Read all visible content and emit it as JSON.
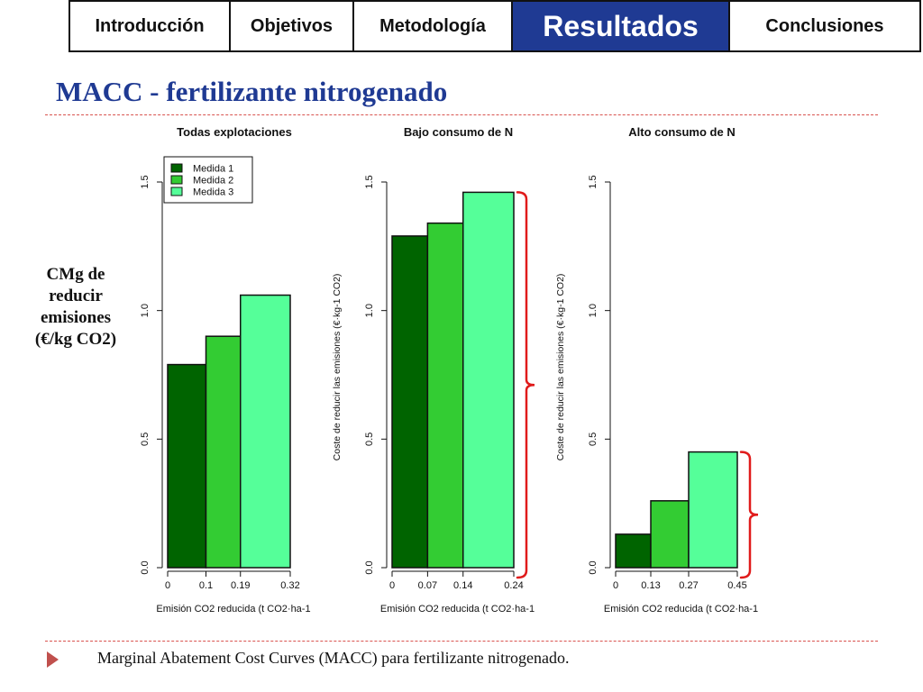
{
  "nav": {
    "tabs": [
      {
        "label": "Introducción",
        "active": false
      },
      {
        "label": "Objetivos",
        "active": false
      },
      {
        "label": "Metodología",
        "active": false
      },
      {
        "label": "Resultados",
        "active": true
      },
      {
        "label": "Conclusiones",
        "active": false
      }
    ]
  },
  "slide": {
    "title": "MACC - fertilizante nitrogenado",
    "side_label": [
      "CMg de",
      "reducir",
      "emisiones",
      "(€/kg CO2)"
    ],
    "caption": "Marginal Abatement Cost Curves (MACC) para fertilizante nitrogenado."
  },
  "colors": {
    "accent": "#1f3a93",
    "rule": "#d9534f",
    "bracket": "#e01b1b",
    "series": [
      "#006400",
      "#33cc33",
      "#55ff99"
    ]
  },
  "chart_data": [
    {
      "type": "bar",
      "title": "Todas explotaciones",
      "xlabel": "Emisión CO2 reducida (t CO2·ha-1",
      "ylabel": "",
      "ylim": [
        0,
        1.5
      ],
      "yticks": [
        "0.0",
        "0.5",
        "1.0",
        "1.5"
      ],
      "xticks": [
        "0",
        "0.1",
        "0.19",
        "0.32"
      ],
      "legend": {
        "placement": "top-left",
        "entries": [
          "Medida 1",
          "Medida 2",
          "Medida 3"
        ]
      },
      "bars": [
        {
          "name": "Medida 1",
          "x0": 0,
          "x1": 0.1,
          "value": 0.79
        },
        {
          "name": "Medida 2",
          "x0": 0.1,
          "x1": 0.19,
          "value": 0.9
        },
        {
          "name": "Medida 3",
          "x0": 0.19,
          "x1": 0.32,
          "value": 1.06
        }
      ],
      "bracket": false
    },
    {
      "type": "bar",
      "title": "Bajo consumo de N",
      "xlabel": "Emisión CO2 reducida (t CO2·ha-1",
      "ylabel": "Coste de reducir las emisiones (€·kg-1 CO2)",
      "ylim": [
        0,
        1.5
      ],
      "yticks": [
        "0.0",
        "0.5",
        "1.0",
        "1.5"
      ],
      "xticks": [
        "0",
        "0.07",
        "0.14",
        "0.24"
      ],
      "bars": [
        {
          "name": "Medida 1",
          "x0": 0,
          "x1": 0.07,
          "value": 1.29
        },
        {
          "name": "Medida 2",
          "x0": 0.07,
          "x1": 0.14,
          "value": 1.34
        },
        {
          "name": "Medida 3",
          "x0": 0.14,
          "x1": 0.24,
          "value": 1.46
        }
      ],
      "bracket": true
    },
    {
      "type": "bar",
      "title": "Alto consumo de N",
      "xlabel": "Emisión CO2 reducida (t CO2·ha-1",
      "ylabel": "Coste de reducir las emisiones (€·kg-1 CO2)",
      "ylim": [
        0,
        1.5
      ],
      "yticks": [
        "0.0",
        "0.5",
        "1.0",
        "1.5"
      ],
      "xticks": [
        "0",
        "0.13",
        "0.27",
        "0.45"
      ],
      "bars": [
        {
          "name": "Medida 1",
          "x0": 0,
          "x1": 0.13,
          "value": 0.13
        },
        {
          "name": "Medida 2",
          "x0": 0.13,
          "x1": 0.27,
          "value": 0.26
        },
        {
          "name": "Medida 3",
          "x0": 0.27,
          "x1": 0.45,
          "value": 0.45
        }
      ],
      "bracket": true
    }
  ]
}
